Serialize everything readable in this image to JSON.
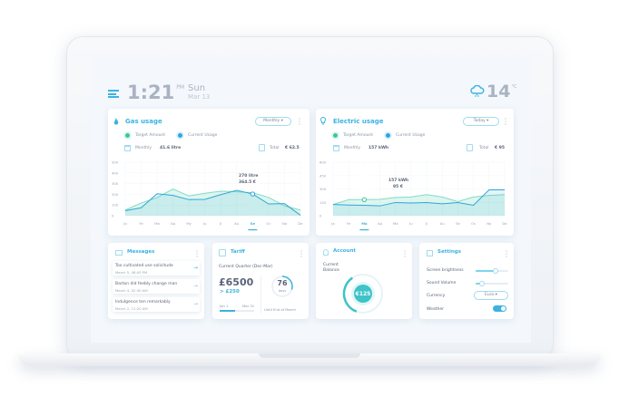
{
  "header": {
    "time": "1:21",
    "ampm": "PM",
    "day": "Sun",
    "date": "Mar 13",
    "temperature": "14",
    "temp_unit": "°C",
    "weather_icon": "cloud-snow-icon"
  },
  "colors": {
    "accent": "#3bb3e0",
    "target": "#7fdcc4",
    "current": "#2fa7d8"
  },
  "gas": {
    "title": "Gas usage",
    "period": "Monthly",
    "legend_target": "Target Amount",
    "legend_current": "Current Usage",
    "monthly_label": "Monthly",
    "monthly_value": "41.6 litre",
    "total_label": "Total",
    "total_value": "€ 62.5",
    "tooltip_line1": "270 litre",
    "tooltip_line2": "364.5 €"
  },
  "electric": {
    "title": "Electric usage",
    "period": "Today",
    "legend_target": "Target Amount",
    "legend_current": "Current Usage",
    "monthly_label": "Monthly",
    "monthly_value": "157 kWh",
    "total_label": "Total",
    "total_value": "€ 95",
    "tooltip_line1": "157 kWh",
    "tooltip_line2": "95 €"
  },
  "chart_data": [
    {
      "type": "line",
      "categories": [
        "Ja",
        "Fe",
        "Ma",
        "Ap",
        "My",
        "Ju",
        "Jl",
        "Au",
        "Se",
        "Oc",
        "No",
        "De"
      ],
      "ylim": [
        0,
        500
      ],
      "yticks": [
        "0",
        "100",
        "200",
        "300",
        "400",
        "500"
      ],
      "highlight": "Se",
      "series": [
        {
          "name": "Target Amount",
          "values": [
            53,
            118,
            170,
            250,
            184,
            210,
            229,
            224,
            215,
            171,
            92,
            53
          ]
        },
        {
          "name": "Current Usage",
          "values": [
            47,
            74,
            205,
            190,
            150,
            153,
            197,
            237,
            203,
            110,
            113,
            5
          ]
        }
      ]
    },
    {
      "type": "line",
      "categories": [
        "Ja",
        "Fe",
        "Ma",
        "Ap",
        "Ma",
        "Ju",
        "Jl",
        "Au",
        "Se",
        "Oc",
        "No",
        "De"
      ],
      "ylim": [
        0,
        600
      ],
      "yticks": [
        "0",
        "150",
        "300",
        "450",
        "600"
      ],
      "highlight": "Ma",
      "series": [
        {
          "name": "Target Amount",
          "values": [
            126,
            180,
            180,
            183,
            205,
            210,
            237,
            210,
            158,
            210,
            227,
            237
          ]
        },
        {
          "name": "Current Usage",
          "values": [
            126,
            120,
            117,
            110,
            148,
            142,
            148,
            133,
            148,
            117,
            290,
            290
          ]
        }
      ]
    }
  ],
  "messages": {
    "title": "Messages",
    "items": [
      {
        "text": "Too cultivated use solicitude",
        "date": "March 5, 08:05 PM"
      },
      {
        "text": "Barton did feebly change man",
        "date": "March 4, 02:30 AM"
      },
      {
        "text": "Indulgence ten remarkably",
        "date": "March 2, 11:20 AM"
      }
    ]
  },
  "tariff": {
    "title": "Tariff",
    "quarter": "Current Quarter (Dec-Mar)",
    "amount": "£6500",
    "delta": "> £250",
    "start": "Jan 1",
    "end": "Mar 31",
    "progress": 0.45,
    "days": "76",
    "days_unit": "days",
    "days_label": "Until End of March"
  },
  "account": {
    "title": "Account",
    "balance_label_1": "Current",
    "balance_label_2": "Balance",
    "balance": "€125",
    "gauge_fraction": 0.35
  },
  "settings": {
    "title": "Settings",
    "brightness_label": "Screen brightness",
    "brightness": 0.6,
    "volume_label": "Sound Volume",
    "volume": 0.2,
    "currency_label": "Currency",
    "currency": "Euro",
    "weather_label": "Weather",
    "weather_on": true
  }
}
